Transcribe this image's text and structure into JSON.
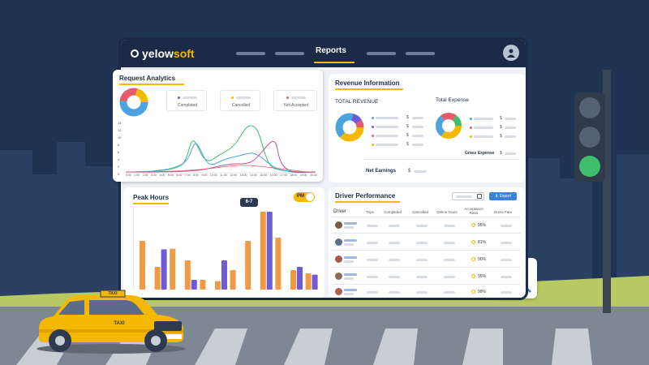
{
  "app": {
    "brand_prefix": "yelow",
    "brand_suffix": "soft",
    "nav_active": "Reports"
  },
  "request_analytics": {
    "title": "Request Analytics",
    "legend": [
      {
        "label": "Completed",
        "color": "#6b5bd6"
      },
      {
        "label": "Cancelled",
        "color": "#f5b800"
      },
      {
        "label": "Not Accepted",
        "color": "#e65c6b"
      }
    ],
    "y_ticks": [
      "14",
      "12",
      "10",
      "8",
      "6",
      "4",
      "2",
      "0"
    ],
    "x_ticks": [
      "0:00",
      "1:00",
      "2:00",
      "3:00",
      "4:00",
      "5:00",
      "6:00",
      "7:00",
      "8:00",
      "9:00",
      "10:00",
      "11:00",
      "12:00",
      "13:00",
      "14:00",
      "15:00",
      "16:00",
      "17:00",
      "18:00",
      "19:00",
      "20:00"
    ]
  },
  "revenue": {
    "title": "Revenue Information",
    "total_revenue_label": "TOTAL REVENUE",
    "total_expense_label": "Total Expense",
    "gross_expense_label": "Gross Expense",
    "net_earnings_label": "Net Earnings",
    "currency": "$"
  },
  "peak_hours": {
    "title": "Peak Hours",
    "toggle_label": "PM",
    "highlight_label": "6-7",
    "chart_data": {
      "type": "bar",
      "series": [
        {
          "values": [
            7.5,
            3.5,
            6.3,
            4.5,
            1.5,
            1.3,
            3.0,
            7.5,
            12.0,
            8.0,
            3.0,
            2.5
          ]
        },
        {
          "values": [
            0,
            6.2,
            0,
            1.5,
            0,
            4.5,
            0,
            0,
            12.0,
            0,
            3.5,
            2.3
          ]
        }
      ],
      "colors": [
        "#ef9a45",
        "#6f5bd6"
      ],
      "ylim": [
        0,
        13
      ]
    }
  },
  "driver_performance": {
    "title": "Driver Performance",
    "export_label": "Export",
    "columns": [
      "Driver",
      "Trips",
      "Completed",
      "Cancelled",
      "Online hours",
      "Acceptance Ratio",
      "Gross Fare"
    ],
    "rows": [
      {
        "ratio": "95%"
      },
      {
        "ratio": "81%"
      },
      {
        "ratio": "90%"
      },
      {
        "ratio": "95%"
      },
      {
        "ratio": "99%"
      }
    ]
  },
  "taxi": {
    "sign": "TAXI",
    "door_label": "TAXI"
  }
}
